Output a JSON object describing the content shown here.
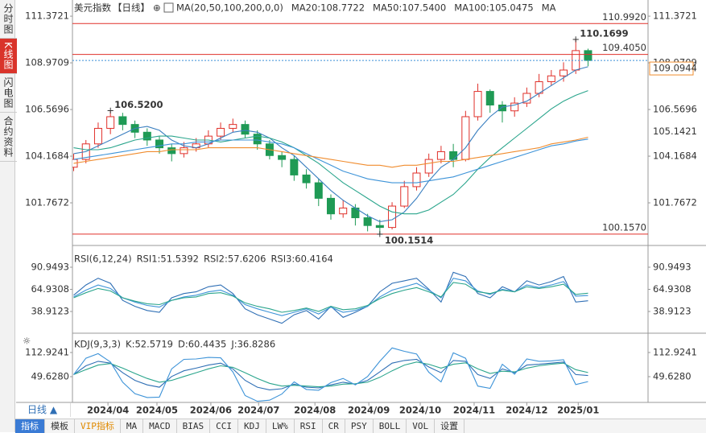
{
  "page": {
    "left_tabs": [
      "分时图",
      "K线图",
      "闪电图",
      "合约资料"
    ],
    "period_button": "日线 ▲",
    "toolbar": [
      "指标",
      "模板",
      "VIP指标",
      "MA",
      "MACD",
      "BIAS",
      "CCI",
      "KDJ",
      "LW%",
      "RSI",
      "CR",
      "PSY",
      "BOLL",
      "VOL",
      "设置"
    ]
  },
  "chart_data": [
    {
      "type": "candlestick",
      "title": "美元指数",
      "subtitle": "【日线】",
      "indicator": "MA(20,50,100,200,0,0)",
      "up_color": "#e0302a",
      "down_color": "#1f9a55",
      "open": [
        103.6,
        104.0,
        104.8,
        105.6,
        106.2,
        105.8,
        105.4,
        105.0,
        104.6,
        104.3,
        104.6,
        104.8,
        105.2,
        105.6,
        105.8,
        105.3,
        104.8,
        104.2,
        104.0,
        103.2,
        102.8,
        102.0,
        101.2,
        101.5,
        101.0,
        100.6,
        100.5,
        101.6,
        102.6,
        103.3,
        104.0,
        104.4,
        104.0,
        106.2,
        107.5,
        106.8,
        106.5,
        106.9,
        107.4,
        108.0,
        108.3,
        108.6,
        109.6
      ],
      "high": [
        104.3,
        105.0,
        105.9,
        106.52,
        106.4,
        106.0,
        105.6,
        105.2,
        104.8,
        104.9,
        105.1,
        105.5,
        105.9,
        106.1,
        106.0,
        105.5,
        105.0,
        104.4,
        104.2,
        103.5,
        103.0,
        102.2,
        101.9,
        101.7,
        101.2,
        100.9,
        101.8,
        102.9,
        103.6,
        104.3,
        104.7,
        104.8,
        106.5,
        107.9,
        107.6,
        107.0,
        107.2,
        107.7,
        108.4,
        108.6,
        109.0,
        110.1699,
        109.7
      ],
      "low": [
        103.4,
        103.8,
        104.6,
        105.3,
        105.5,
        105.1,
        104.7,
        104.3,
        103.9,
        104.1,
        104.4,
        104.6,
        105.0,
        105.4,
        105.1,
        104.5,
        104.0,
        103.6,
        102.9,
        102.5,
        101.6,
        100.9,
        101.0,
        100.6,
        100.3,
        100.1514,
        100.4,
        101.5,
        102.4,
        103.1,
        103.8,
        103.6,
        103.9,
        106.0,
        106.4,
        105.9,
        106.2,
        106.7,
        107.2,
        107.8,
        108.0,
        108.4,
        108.8
      ],
      "close": [
        104.0,
        104.8,
        105.6,
        106.2,
        105.8,
        105.4,
        105.0,
        104.6,
        104.3,
        104.6,
        104.8,
        105.2,
        105.6,
        105.8,
        105.3,
        104.8,
        104.2,
        104.0,
        103.2,
        102.8,
        102.0,
        101.2,
        101.5,
        101.0,
        100.6,
        100.5,
        101.6,
        102.6,
        103.3,
        104.0,
        104.4,
        104.0,
        106.2,
        107.5,
        106.8,
        106.5,
        106.9,
        107.4,
        108.0,
        108.3,
        108.6,
        109.6,
        109.0944
      ],
      "series": [
        {
          "name": "MA20:108.7722",
          "color": "#3a7fc0",
          "values": [
            104.3,
            104.4,
            104.7,
            105.0,
            105.3,
            105.6,
            105.7,
            105.5,
            105.0,
            104.7,
            104.6,
            104.8,
            105.1,
            105.4,
            105.5,
            105.4,
            105.1,
            104.6,
            104.2,
            103.6,
            103.0,
            102.4,
            101.9,
            101.5,
            101.1,
            100.8,
            100.9,
            101.3,
            102.0,
            102.9,
            103.6,
            104.0,
            104.6,
            105.5,
            106.2,
            106.7,
            106.8,
            107.0,
            107.4,
            107.8,
            108.2,
            108.6,
            108.7722
          ]
        },
        {
          "name": "MA50:107.5400",
          "color": "#2aa58c",
          "values": [
            104.6,
            104.5,
            104.5,
            104.6,
            104.8,
            105.0,
            105.1,
            105.2,
            105.2,
            105.1,
            105.0,
            105.0,
            104.9,
            105.0,
            105.1,
            105.2,
            105.1,
            104.9,
            104.6,
            104.2,
            103.8,
            103.3,
            102.8,
            102.4,
            102.0,
            101.6,
            101.3,
            101.2,
            101.2,
            101.4,
            101.8,
            102.2,
            102.8,
            103.5,
            104.1,
            104.6,
            105.1,
            105.6,
            106.1,
            106.6,
            107.0,
            107.3,
            107.54
          ]
        },
        {
          "name": "MA100:105.0475",
          "color": "#3d93d8",
          "values": [
            104.0,
            104.1,
            104.2,
            104.3,
            104.4,
            104.5,
            104.6,
            104.7,
            104.8,
            104.8,
            104.9,
            104.9,
            105.0,
            105.0,
            105.0,
            105.0,
            104.9,
            104.8,
            104.6,
            104.3,
            104.0,
            103.7,
            103.4,
            103.2,
            103.0,
            102.9,
            102.8,
            102.8,
            102.8,
            102.9,
            103.0,
            103.1,
            103.3,
            103.5,
            103.7,
            103.9,
            104.1,
            104.3,
            104.5,
            104.7,
            104.8,
            104.95,
            105.0475
          ]
        },
        {
          "name": "MA",
          "color": "#f08c2e",
          "last_label": "105.1421",
          "values": [
            103.8,
            103.9,
            104.0,
            104.1,
            104.2,
            104.3,
            104.4,
            104.4,
            104.5,
            104.5,
            104.5,
            104.6,
            104.6,
            104.6,
            104.6,
            104.6,
            104.5,
            104.4,
            104.3,
            104.2,
            104.1,
            104.0,
            103.9,
            103.8,
            103.7,
            103.7,
            103.6,
            103.7,
            103.7,
            103.8,
            103.9,
            103.9,
            104.0,
            104.1,
            104.2,
            104.3,
            104.4,
            104.5,
            104.6,
            104.8,
            104.9,
            105.0,
            105.1421
          ]
        }
      ],
      "ylim": [
        99.78,
        111.79
      ],
      "yticks": [
        111.3721,
        108.9709,
        106.5696,
        104.1684,
        101.7672
      ],
      "hlines": [
        {
          "value": 110.992,
          "label": "110.9920",
          "color": "#e0302a"
        },
        {
          "value": 109.405,
          "label": "109.4050",
          "color": "#e0302a"
        },
        {
          "value": 100.157,
          "label": "100.1570",
          "color": "#e0302a"
        }
      ],
      "last_price": {
        "value": 109.0944,
        "label": "109.0944",
        "color": "#f08c2e",
        "line_color": "#3a8fd8"
      },
      "annotations": [
        {
          "x": 3,
          "value": 106.52,
          "label": "106.5200",
          "color": "#e0302a"
        },
        {
          "x": 41,
          "value": 110.1699,
          "label": "110.1699",
          "color": "#e0302a"
        },
        {
          "x": 25,
          "value": 100.1514,
          "label": "100.1514",
          "color": "#2aa58c"
        }
      ]
    },
    {
      "type": "line",
      "title": "RSI(6,12,24)",
      "series": [
        {
          "name": "RSI1:51.5392",
          "color": "#2f6fb5",
          "values": [
            58,
            70,
            78,
            72,
            52,
            45,
            40,
            38,
            55,
            60,
            62,
            68,
            70,
            60,
            42,
            35,
            30,
            25,
            35,
            40,
            30,
            45,
            32,
            38,
            45,
            62,
            72,
            75,
            78,
            65,
            50,
            85,
            80,
            60,
            55,
            68,
            62,
            75,
            70,
            74,
            80,
            50,
            51.5392
          ]
        },
        {
          "name": "RSI2:57.6206",
          "color": "#3d93d8",
          "values": [
            56,
            64,
            70,
            66,
            55,
            50,
            46,
            44,
            52,
            56,
            58,
            62,
            64,
            58,
            47,
            42,
            38,
            34,
            38,
            42,
            36,
            44,
            38,
            40,
            45,
            56,
            64,
            68,
            72,
            64,
            55,
            78,
            75,
            63,
            59,
            65,
            62,
            70,
            67,
            70,
            74,
            57,
            57.6206
          ]
        },
        {
          "name": "RSI3:60.4164",
          "color": "#2aa58c",
          "values": [
            55,
            61,
            66,
            63,
            55,
            51,
            48,
            47,
            52,
            55,
            56,
            60,
            61,
            57,
            49,
            45,
            42,
            38,
            40,
            43,
            39,
            45,
            41,
            42,
            46,
            54,
            60,
            64,
            67,
            62,
            56,
            73,
            71,
            62,
            60,
            64,
            62,
            68,
            66,
            68,
            71,
            59,
            60.4164
          ]
        }
      ],
      "ylim": [
        17.15,
        109.87
      ],
      "yticks": [
        90.9493,
        64.9308,
        38.9123
      ]
    },
    {
      "type": "line",
      "title": "KDJ(9,3,3)",
      "series": [
        {
          "name": "K:52.5719",
          "color": "#2f6fb5",
          "values": [
            55,
            78,
            90,
            85,
            60,
            40,
            28,
            22,
            50,
            65,
            72,
            80,
            85,
            70,
            40,
            22,
            15,
            18,
            30,
            22,
            20,
            28,
            35,
            30,
            40,
            62,
            85,
            92,
            95,
            75,
            60,
            92,
            90,
            55,
            45,
            70,
            60,
            80,
            82,
            85,
            88,
            55,
            52.5719
          ]
        },
        {
          "name": "D:60.4435",
          "color": "#2aa58c",
          "values": [
            55,
            68,
            80,
            84,
            72,
            58,
            45,
            35,
            40,
            50,
            60,
            70,
            78,
            74,
            60,
            45,
            32,
            25,
            27,
            25,
            23,
            25,
            30,
            31,
            35,
            48,
            65,
            80,
            88,
            82,
            72,
            82,
            86,
            70,
            58,
            64,
            62,
            72,
            78,
            82,
            85,
            68,
            60.4435
          ]
        },
        {
          "name": "J:36.8286",
          "color": "#3d93d8",
          "values": [
            55,
            98,
            110,
            88,
            35,
            5,
            -5,
            -4,
            70,
            95,
            96,
            100,
            99,
            62,
            0,
            -15,
            -12,
            4,
            36,
            16,
            14,
            34,
            45,
            28,
            50,
            90,
            125,
            116,
            109,
            61,
            36,
            112,
            98,
            25,
            19,
            82,
            56,
            96,
            90,
            91,
            94,
            29,
            36.8286
          ]
        }
      ],
      "ylim": [
        -17.9,
        155.1
      ],
      "yticks": [
        112.9241,
        {
          "value": 49.628,
          "label": "49.6280"
        }
      ],
      "xlim": [
        -0.1,
        46.9
      ],
      "xticks": [
        {
          "value": 2.8,
          "label": "2024/04"
        },
        {
          "value": 6.8,
          "label": "2024/05"
        },
        {
          "value": 11.2,
          "label": "2024/06"
        },
        {
          "value": 15.1,
          "label": "2024/07"
        },
        {
          "value": 19.7,
          "label": "2024/08"
        },
        {
          "value": 24.1,
          "label": "2024/09"
        },
        {
          "value": 28.3,
          "label": "2024/10"
        },
        {
          "value": 32.7,
          "label": "2024/11"
        },
        {
          "value": 37,
          "label": "2024/12"
        },
        {
          "value": 41.2,
          "label": "2025/01"
        }
      ]
    }
  ]
}
